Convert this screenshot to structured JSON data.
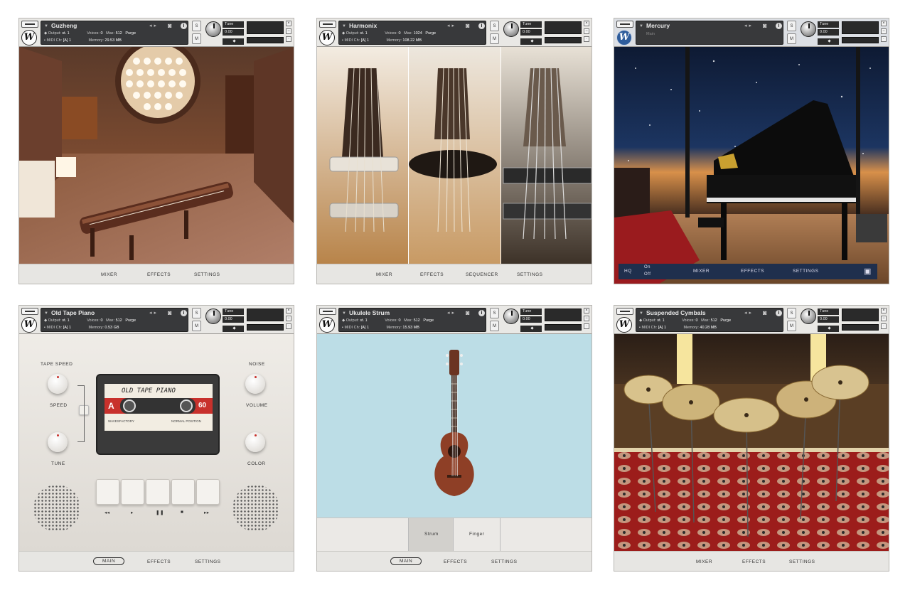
{
  "panels": [
    {
      "name": "Guzheng",
      "output": "st. 1",
      "midi": "[A]  1",
      "voices_label": "Voices:",
      "voices": "0",
      "max_label": "Max:",
      "max": "512",
      "memory_label": "Memory:",
      "memory": "29.53 MB",
      "purge": "Purge",
      "tune_label": "Tune",
      "tune_value": "0.00",
      "footer": [
        "MIXER",
        "EFFECTS",
        "SETTINGS"
      ]
    },
    {
      "name": "Harmonix",
      "output": "st. 1",
      "midi": "[A]  1",
      "voices_label": "Voices:",
      "voices": "0",
      "max_label": "Max:",
      "max": "1024",
      "memory_label": "Memory:",
      "memory": "108.22 MB",
      "purge": "Purge",
      "tune_label": "Tune",
      "tune_value": "0.00",
      "footer": [
        "MIXER",
        "EFFECTS",
        "SEQUENCER",
        "SETTINGS"
      ]
    },
    {
      "name": "Mercury",
      "sub": "Main",
      "tune_label": "Tune",
      "tune_value": "0.00",
      "hq_label": "HQ",
      "hq_on": "On",
      "hq_off": "Off",
      "footer": [
        "MIXER",
        "EFFECTS",
        "SETTINGS"
      ]
    },
    {
      "name": "Old Tape Piano",
      "output": "st. 1",
      "midi": "[A]  1",
      "voices_label": "Voices:",
      "voices": "0",
      "max_label": "Max:",
      "max": "512",
      "memory_label": "Memory:",
      "memory": "0.53 GB",
      "purge": "Purge",
      "tune_label": "Tune",
      "tune_value": "0.00",
      "tape_speed": "TAPE SPEED",
      "noise": "NOISE",
      "speed": "SPEED",
      "volume": "VOLUME",
      "tune": "TUNE",
      "color": "COLOR",
      "cassette_title": "OLD TAPE PIANO",
      "side": "A",
      "length": "60",
      "brand": "WAVESFACTORY",
      "position": "NORMAL POSITION",
      "transport": [
        "◂◂",
        "▸",
        "❚❚",
        "■",
        "▸▸"
      ],
      "footer": [
        "MAIN",
        "EFFECTS",
        "SETTINGS"
      ]
    },
    {
      "name": "Ukulele Strum",
      "output": "st. 1",
      "midi": "[A]  1",
      "voices_label": "Voices:",
      "voices": "0",
      "max_label": "Max:",
      "max": "512",
      "memory_label": "Memory:",
      "memory": "15.93 MB",
      "purge": "Purge",
      "tune_label": "Tune",
      "tune_value": "0.00",
      "modes": [
        "Strum",
        "Finger"
      ],
      "footer": [
        "MAIN",
        "EFFECTS",
        "SETTINGS"
      ]
    },
    {
      "name": "Suspended Cymbals",
      "output": "st. 1",
      "midi": "[A]  1",
      "voices_label": "Voices:",
      "voices": "0",
      "max_label": "Max:",
      "max": "512",
      "memory_label": "Memory:",
      "memory": "40.28 MB",
      "purge": "Purge",
      "tune_label": "Tune",
      "tune_value": "0.00",
      "footer": [
        "MIXER",
        "EFFECTS",
        "SETTINGS"
      ]
    }
  ],
  "colors": {
    "header_display": "#38393b",
    "footer_bg": "#e7e6e3",
    "hq_bar": "#1f2f4d",
    "ukulele_bg": "#bcdde6",
    "cassette_red": "#c8312c"
  }
}
